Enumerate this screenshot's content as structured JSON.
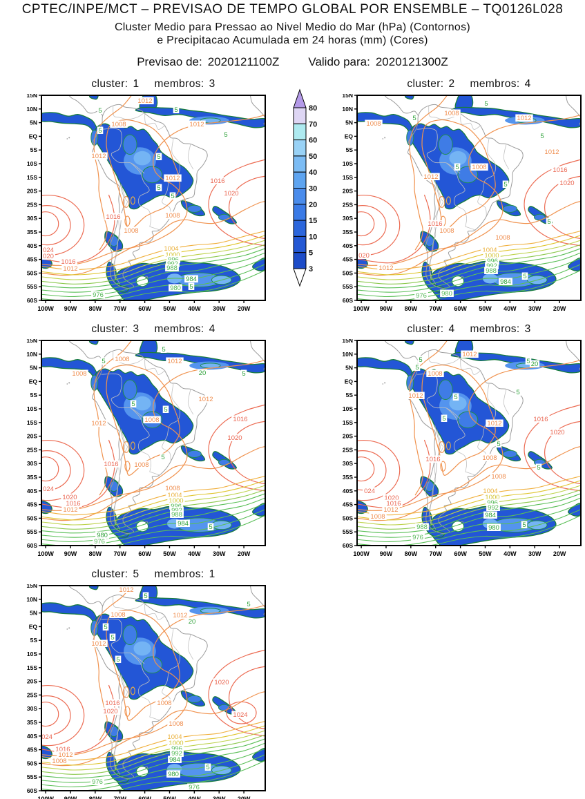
{
  "header": {
    "title": "CPTEC/INPE/MCT – PREVISAO DE TEMPO GLOBAL POR ENSEMBLE – TQ0126L028",
    "subtitle1": "Cluster Medio para Pressao ao Nivel Medio do Mar (hPa) (Contornos)",
    "subtitle2": "e Precipitacao Acumulada em 24 horas (mm) (Cores)",
    "forecast_label": "Previsao de:",
    "forecast_value": "2020121100Z",
    "valid_label": "Valido para:",
    "valid_value": "2020121300Z"
  },
  "panel_labels": {
    "cluster": "cluster:",
    "membros": "membros:"
  },
  "axes": {
    "lat_labels": [
      "15N",
      "10N",
      "5N",
      "EQ",
      "5S",
      "10S",
      "15S",
      "20S",
      "25S",
      "30S",
      "35S",
      "40S",
      "45S",
      "50S",
      "55S",
      "60S"
    ],
    "lon_labels": [
      "100W",
      "90W",
      "80W",
      "70W",
      "60W",
      "50W",
      "40W",
      "30W",
      "20W"
    ]
  },
  "colorbar": {
    "units": "mm",
    "levels": [
      3,
      5,
      10,
      15,
      20,
      30,
      40,
      50,
      60,
      70,
      80
    ],
    "segment_colors": [
      "#1d4cc8",
      "#2458d4",
      "#2c66dc",
      "#3a7ae6",
      "#4a8cec",
      "#5ea4f0",
      "#7cbcf4",
      "#99d2f6",
      "#aeeaf0",
      "#ded6f4"
    ],
    "above_color": "#b49ae8",
    "below_color": "#ffffff"
  },
  "label_colors": {
    "o": "#ef8c4c",
    "r": "#ea6550",
    "a": "#eaaf38",
    "y": "#d2c22e",
    "g": "#52b854",
    "b": "#2fa23a"
  },
  "map_colors": {
    "precip_base": "#2356d6",
    "precip_edge": "#187c3e",
    "core1": "#3f7ce6",
    "core2": "#5494ee",
    "core3": "#74b4f4",
    "coast": "#9b9b9b",
    "border": "#c0c0c0",
    "contour_orange": "#f0924e",
    "contour_red": "#ec6b52",
    "contour_amber": "#f0b03e",
    "contour_yellow": "#e0c631",
    "contour_yellowgreen": "#bdd24a",
    "contour_lightgreen": "#8cc94e",
    "contour_green": "#5abf57"
  },
  "panels": [
    {
      "cluster": "1",
      "membros": "3",
      "labels": [
        [
          "1012",
          150,
          8,
          "o"
        ],
        [
          "5",
          85,
          22,
          "b"
        ],
        [
          "5",
          195,
          21,
          "b"
        ],
        [
          "1008",
          112,
          42,
          "o"
        ],
        [
          "1012",
          225,
          42,
          "o"
        ],
        [
          "5",
          85,
          51,
          "b"
        ],
        [
          "5",
          267,
          57,
          "b"
        ],
        [
          "1012",
          83,
          88,
          "o"
        ],
        [
          "5",
          170,
          89,
          "b"
        ],
        [
          "1012",
          190,
          120,
          "o"
        ],
        [
          "1016",
          255,
          124,
          "r"
        ],
        [
          "5",
          170,
          134,
          "b"
        ],
        [
          "1020",
          275,
          142,
          "r"
        ],
        [
          "5",
          190,
          146,
          "b"
        ],
        [
          "1008",
          190,
          174,
          "o"
        ],
        [
          "1016",
          104,
          176,
          "r"
        ],
        [
          "1008",
          130,
          196,
          "o"
        ],
        [
          "1004",
          188,
          222,
          "a"
        ],
        [
          "024",
          10,
          224,
          "r"
        ],
        [
          "1000",
          190,
          231,
          "y"
        ],
        [
          "020",
          10,
          233,
          "r"
        ],
        [
          "996",
          191,
          238,
          "g"
        ],
        [
          "1016",
          39,
          241,
          "r"
        ],
        [
          "992",
          190,
          244,
          "g"
        ],
        [
          "988",
          189,
          250,
          "g"
        ],
        [
          "1012",
          42,
          251,
          "o"
        ],
        [
          "984",
          217,
          266,
          "b"
        ],
        [
          "5",
          217,
          277,
          "b"
        ],
        [
          "980",
          194,
          279,
          "g"
        ],
        [
          "976",
          82,
          289,
          "g"
        ]
      ]
    },
    {
      "cluster": "2",
      "membros": "4",
      "labels": [
        [
          "5",
          187,
          12,
          "b"
        ],
        [
          "1008",
          137,
          26,
          "o"
        ],
        [
          "1012",
          242,
          33,
          "o"
        ],
        [
          "5",
          83,
          33,
          "b"
        ],
        [
          "1008",
          24,
          41,
          "o"
        ],
        [
          "5",
          268,
          59,
          "b"
        ],
        [
          "1012",
          282,
          82,
          "o"
        ],
        [
          "1008",
          177,
          104,
          "o"
        ],
        [
          "5",
          145,
          104,
          "b"
        ],
        [
          "1016",
          294,
          108,
          "r"
        ],
        [
          "1012",
          107,
          118,
          "o"
        ],
        [
          "1020",
          304,
          127,
          "r"
        ],
        [
          "5",
          215,
          129,
          "b"
        ],
        [
          "5",
          278,
          183,
          "b"
        ],
        [
          "1016",
          113,
          186,
          "r"
        ],
        [
          "1008",
          130,
          196,
          "o"
        ],
        [
          "1008",
          211,
          206,
          "o"
        ],
        [
          "1004",
          192,
          224,
          "a"
        ],
        [
          "1000",
          195,
          232,
          "y"
        ],
        [
          "020",
          10,
          232,
          "r"
        ],
        [
          "996",
          196,
          240,
          "g"
        ],
        [
          "992",
          195,
          247,
          "g"
        ],
        [
          "1012",
          42,
          250,
          "o"
        ],
        [
          "988",
          194,
          254,
          "g"
        ],
        [
          "5",
          243,
          262,
          "b"
        ],
        [
          "984",
          215,
          270,
          "b"
        ],
        [
          "980",
          130,
          287,
          "g"
        ],
        [
          "976",
          93,
          290,
          "g"
        ]
      ]
    },
    {
      "cluster": "3",
      "membros": "4",
      "labels": [
        [
          "5",
          177,
          13,
          "b"
        ],
        [
          "1008",
          117,
          27,
          "o"
        ],
        [
          "1012",
          193,
          30,
          "o"
        ],
        [
          "5",
          90,
          30,
          "b"
        ],
        [
          "20",
          233,
          47,
          "b"
        ],
        [
          "1008",
          55,
          48,
          "o"
        ],
        [
          "5",
          293,
          48,
          "b"
        ],
        [
          "1012",
          238,
          85,
          "o"
        ],
        [
          "5",
          133,
          92,
          "b"
        ],
        [
          "5",
          180,
          100,
          "b"
        ],
        [
          "1016",
          288,
          114,
          "r"
        ],
        [
          "1008",
          160,
          115,
          "o"
        ],
        [
          "1012",
          83,
          120,
          "o"
        ],
        [
          "1020",
          280,
          141,
          "r"
        ],
        [
          "5",
          176,
          169,
          "b"
        ],
        [
          "1016",
          101,
          179,
          "r"
        ],
        [
          "1008",
          145,
          180,
          "o"
        ],
        [
          "1008",
          190,
          214,
          "o"
        ],
        [
          "024",
          10,
          215,
          "r"
        ],
        [
          "1004",
          193,
          224,
          "a"
        ],
        [
          "1020",
          41,
          227,
          "r"
        ],
        [
          "1000",
          195,
          232,
          "y"
        ],
        [
          "1016",
          46,
          236,
          "r"
        ],
        [
          "996",
          195,
          240,
          "g"
        ],
        [
          "1012",
          42,
          245,
          "o"
        ],
        [
          "992",
          196,
          246,
          "g"
        ],
        [
          "988",
          196,
          252,
          "g"
        ],
        [
          "984",
          205,
          265,
          "b"
        ],
        [
          "5",
          245,
          270,
          "b"
        ],
        [
          "980",
          88,
          282,
          "b"
        ],
        [
          "976",
          84,
          291,
          "g"
        ]
      ]
    },
    {
      "cluster": "4",
      "membros": "3",
      "labels": [
        [
          "1012",
          163,
          20,
          "o"
        ],
        [
          "5",
          92,
          28,
          "b"
        ],
        [
          "5",
          248,
          30,
          "b"
        ],
        [
          "20",
          257,
          34,
          "b"
        ],
        [
          "5",
          87,
          39,
          "b"
        ],
        [
          "1008",
          113,
          48,
          "o"
        ],
        [
          "5",
          233,
          75,
          "b"
        ],
        [
          "1012",
          85,
          80,
          "o"
        ],
        [
          "5",
          143,
          82,
          "b"
        ],
        [
          "5",
          126,
          113,
          "b"
        ],
        [
          "1016",
          266,
          114,
          "r"
        ],
        [
          "1012",
          199,
          120,
          "o"
        ],
        [
          "1020",
          290,
          133,
          "r"
        ],
        [
          "5",
          205,
          150,
          "b"
        ],
        [
          "1008",
          192,
          170,
          "o"
        ],
        [
          "1016",
          110,
          172,
          "r"
        ],
        [
          "5",
          263,
          184,
          "b"
        ],
        [
          "1008",
          205,
          197,
          "o"
        ],
        [
          "1004",
          193,
          218,
          "a"
        ],
        [
          "024",
          18,
          218,
          "r"
        ],
        [
          "1000",
          196,
          227,
          "y"
        ],
        [
          "1020",
          50,
          228,
          "r"
        ],
        [
          "996",
          196,
          235,
          "g"
        ],
        [
          "1016",
          53,
          236,
          "r"
        ],
        [
          "992",
          197,
          242,
          "g"
        ],
        [
          "1012",
          49,
          245,
          "o"
        ],
        [
          "984",
          193,
          253,
          "b"
        ],
        [
          "1008",
          30,
          255,
          "o"
        ],
        [
          "5",
          242,
          267,
          "b"
        ],
        [
          "988",
          94,
          270,
          "g"
        ],
        [
          "980",
          198,
          271,
          "b"
        ],
        [
          "976",
          88,
          285,
          "g"
        ]
      ]
    },
    {
      "cluster": "5",
      "membros": "1",
      "labels": [
        [
          "1012",
          123,
          6,
          "o"
        ],
        [
          "5",
          151,
          15,
          "b"
        ],
        [
          "5",
          300,
          27,
          "b"
        ],
        [
          "1008",
          111,
          42,
          "o"
        ],
        [
          "1012",
          201,
          43,
          "o"
        ],
        [
          "20",
          218,
          52,
          "b"
        ],
        [
          "5",
          93,
          60,
          "b"
        ],
        [
          "5",
          103,
          75,
          "b"
        ],
        [
          "1012",
          83,
          84,
          "o"
        ],
        [
          "5",
          111,
          107,
          "b"
        ],
        [
          "1020",
          261,
          140,
          "r"
        ],
        [
          "1016",
          103,
          170,
          "r"
        ],
        [
          "1008",
          178,
          170,
          "o"
        ],
        [
          "1020",
          100,
          182,
          "r"
        ],
        [
          "1024",
          288,
          187,
          "r"
        ],
        [
          "1008",
          195,
          200,
          "o"
        ],
        [
          "1004",
          193,
          219,
          "a"
        ],
        [
          "024",
          8,
          219,
          "r"
        ],
        [
          "1000",
          195,
          228,
          "y"
        ],
        [
          "996",
          196,
          236,
          "g"
        ],
        [
          "1016",
          31,
          237,
          "r"
        ],
        [
          "992",
          196,
          243,
          "g"
        ],
        [
          "1012",
          35,
          245,
          "o"
        ],
        [
          "984",
          193,
          252,
          "b"
        ],
        [
          "1008",
          26,
          254,
          "o"
        ],
        [
          "5",
          241,
          263,
          "b"
        ],
        [
          "980",
          191,
          273,
          "b"
        ],
        [
          "976",
          81,
          284,
          "g"
        ],
        [
          "976",
          221,
          292,
          "g"
        ]
      ]
    }
  ]
}
